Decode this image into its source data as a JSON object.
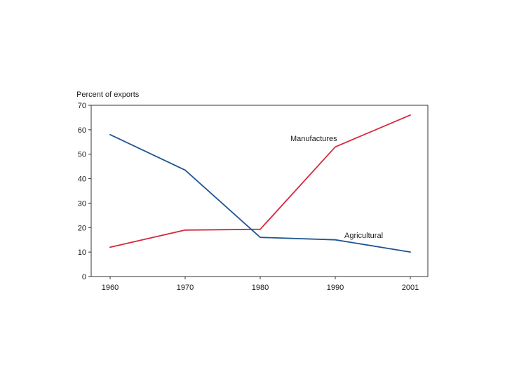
{
  "chart_data": {
    "type": "line",
    "ylabel": "Percent of exports",
    "xlabel": "",
    "x": [
      "1960",
      "1970",
      "1980",
      "1990",
      "2001"
    ],
    "ylim": [
      0,
      70
    ],
    "yticks": [
      0,
      10,
      20,
      30,
      40,
      50,
      60,
      70
    ],
    "grid": false,
    "legend": "none (direct labels on lines)",
    "series": [
      {
        "name": "Manufactures",
        "color": "#d42a3c",
        "values": [
          12,
          19,
          19.3,
          53,
          66
        ]
      },
      {
        "name": "Agricultural",
        "color": "#1f5591",
        "values": [
          58,
          43.5,
          16,
          15,
          10
        ]
      }
    ]
  }
}
